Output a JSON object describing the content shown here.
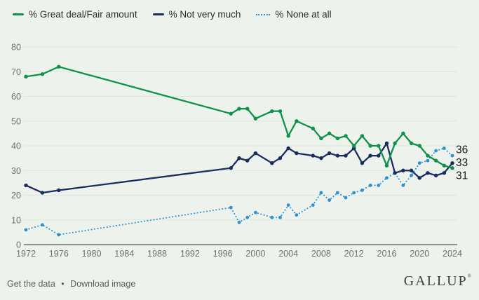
{
  "legend": [
    {
      "series_id": "trust",
      "label": "% Great deal/Fair amount"
    },
    {
      "series_id": "not_very_much",
      "label": "% Not very much"
    },
    {
      "series_id": "none_at_all",
      "label": "% None at all"
    }
  ],
  "chart_data": {
    "type": "line",
    "x": [
      1972,
      1974,
      1976,
      1997,
      1998,
      1999,
      2000,
      2002,
      2003,
      2004,
      2005,
      2007,
      2008,
      2009,
      2010,
      2011,
      2012,
      2013,
      2014,
      2015,
      2016,
      2017,
      2018,
      2019,
      2020,
      2021,
      2022,
      2023,
      2024
    ],
    "series": [
      {
        "id": "trust",
        "name": "% Great deal/Fair amount",
        "color": "#0e9148",
        "style": "solid",
        "values": [
          68,
          69,
          72,
          53,
          55,
          55,
          51,
          54,
          54,
          44,
          50,
          47,
          43,
          45,
          43,
          44,
          40,
          44,
          40,
          40,
          32,
          41,
          45,
          41,
          40,
          36,
          34,
          32,
          31
        ],
        "end_label": "31"
      },
      {
        "id": "not_very_much",
        "name": "% Not very much",
        "color": "#1a2c5e",
        "style": "solid",
        "values": [
          24,
          21,
          22,
          31,
          35,
          34,
          37,
          33,
          35,
          39,
          37,
          36,
          35,
          37,
          36,
          36,
          39,
          33,
          36,
          36,
          41,
          29,
          30,
          30,
          27,
          29,
          28,
          29,
          33
        ],
        "end_label": "33"
      },
      {
        "id": "none_at_all",
        "name": "% None at all",
        "color": "#2d91d1",
        "style": "dotted",
        "values": [
          6,
          8,
          4,
          15,
          9,
          11,
          13,
          11,
          11,
          16,
          12,
          16,
          21,
          18,
          21,
          19,
          21,
          22,
          24,
          24,
          27,
          29,
          24,
          28,
          33,
          34,
          38,
          39,
          36
        ],
        "end_label": "36"
      }
    ],
    "xticks": [
      1972,
      1976,
      1980,
      1984,
      1988,
      1992,
      1996,
      2000,
      2004,
      2008,
      2012,
      2016,
      2020,
      2024
    ],
    "yticks": [
      0,
      10,
      20,
      30,
      40,
      50,
      60,
      70,
      80
    ],
    "xlim": [
      1972,
      2024
    ],
    "ylim": [
      0,
      80
    ],
    "grid": "horizontal",
    "legend_position": "top"
  },
  "footer": {
    "links": [
      "Get the data",
      "Download image"
    ],
    "separator": "•",
    "brand": "GALLUP",
    "brand_mark": "®"
  },
  "colors": {
    "background": "#edf3ec",
    "gridline": "#dde6dd",
    "axis": "#54585a",
    "tick_text": "#6d716d"
  }
}
